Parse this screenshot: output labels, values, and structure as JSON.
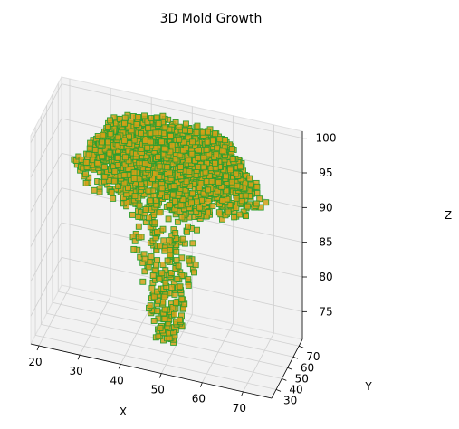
{
  "chart_data": {
    "type": "scatter",
    "title": "3D Mold Growth",
    "xlabel": "X",
    "ylabel": "Y",
    "zlabel": "Z",
    "x_ticks": [
      20,
      30,
      40,
      50,
      60,
      70
    ],
    "y_ticks": [
      30,
      40,
      50,
      60,
      70
    ],
    "z_ticks": [
      75,
      80,
      85,
      90,
      95,
      100
    ],
    "xlim": [
      18,
      77
    ],
    "ylim": [
      22,
      76
    ],
    "zlim": [
      71,
      101
    ],
    "grid": true,
    "marker": "cube",
    "marker_fill": "#d4a017",
    "marker_edge": "#2e9e2e",
    "pane_color": "#f2f2f2",
    "grid_color": "#d0d0d0"
  }
}
